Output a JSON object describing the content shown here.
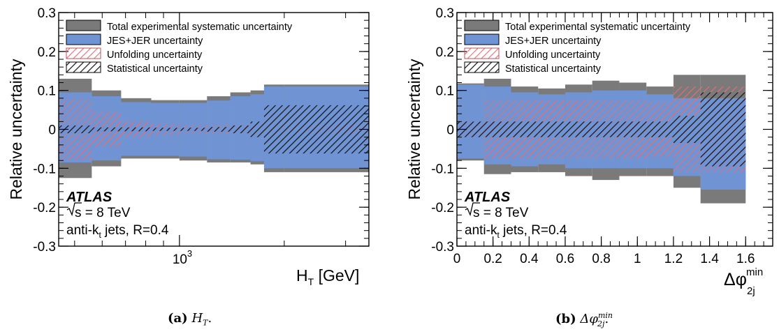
{
  "chart_data": [
    {
      "type": "area",
      "panel": "a",
      "xlabel": "H_T [GeV]",
      "xlabel_main": "H",
      "xlabel_sub": "T",
      "xlabel_unit": " [GeV]",
      "ylabel": "Relative uncertainty",
      "xscale": "log",
      "xlim": [
        450,
        3500
      ],
      "ylim": [
        -0.3,
        0.3
      ],
      "yticks": [
        "0.3",
        "0.2",
        "0.1",
        "0",
        "-0.1",
        "-0.2",
        "-0.3"
      ],
      "ytick_values": [
        0.3,
        0.2,
        0.1,
        0,
        -0.1,
        -0.2,
        -0.3
      ],
      "xtick_label_base": "10",
      "xtick_label_exp": "3",
      "xtick_value": 1000,
      "bin_edges": [
        450,
        560,
        680,
        830,
        1000,
        1200,
        1400,
        1600,
        1750,
        2000,
        3500
      ],
      "series": [
        {
          "name": "Total experimental systematic uncertainty",
          "style": "solid",
          "color": "#7a7a7a",
          "up": [
            0.13,
            0.1,
            0.08,
            0.075,
            0.075,
            0.085,
            0.095,
            0.1,
            0.115,
            0.115
          ],
          "down": [
            -0.125,
            -0.095,
            -0.075,
            -0.075,
            -0.08,
            -0.085,
            -0.085,
            -0.09,
            -0.11,
            -0.11
          ]
        },
        {
          "name": "JES+JER uncertainty",
          "style": "solid",
          "color": "#6f93d3",
          "up": [
            0.095,
            0.085,
            0.07,
            0.068,
            0.068,
            0.074,
            0.085,
            0.09,
            0.11,
            0.11
          ],
          "down": [
            -0.085,
            -0.08,
            -0.068,
            -0.068,
            -0.07,
            -0.077,
            -0.078,
            -0.082,
            -0.1,
            -0.1
          ]
        },
        {
          "name": "Unfolding uncertainty",
          "style": "hatch-red",
          "color": "#e0787a",
          "up": [
            0.078,
            0.045,
            0.02,
            0.015,
            0.012,
            0.012,
            0.01,
            0.012,
            0.012,
            0.012
          ],
          "down": [
            -0.078,
            -0.045,
            -0.02,
            -0.015,
            -0.012,
            -0.012,
            -0.01,
            -0.012,
            -0.012,
            -0.012
          ]
        },
        {
          "name": "Statistical uncertainty",
          "style": "hatch-black",
          "color": "#000000",
          "up": [
            0.01,
            0.005,
            0.005,
            0.004,
            0.004,
            0.006,
            0.01,
            0.02,
            0.062,
            0.062
          ],
          "down": [
            -0.01,
            -0.005,
            -0.005,
            -0.004,
            -0.004,
            -0.006,
            -0.01,
            -0.02,
            -0.062,
            -0.062
          ]
        }
      ],
      "atlas_label": "ATLAS",
      "energy_label": "s = 8 TeV",
      "jets_label": "anti-k",
      "jets_sub": "t",
      "jets_rest": " jets, R=0.4",
      "legend_position": "top-left",
      "grid": false
    },
    {
      "type": "area",
      "panel": "b",
      "xlabel": "Δφ_2j^min",
      "xlabel_main": "Δφ",
      "xlabel_sup": "min",
      "xlabel_sub": "2j",
      "ylabel": "Relative uncertainty",
      "xscale": "linear",
      "xlim": [
        0,
        1.75
      ],
      "ylim": [
        -0.3,
        0.3
      ],
      "yticks": [
        "0.3",
        "0.2",
        "0.1",
        "0",
        "-0.1",
        "-0.2",
        "-0.3"
      ],
      "ytick_values": [
        0.3,
        0.2,
        0.1,
        0,
        -0.1,
        -0.2,
        -0.3
      ],
      "xticks": [
        "0",
        "0.2",
        "0.4",
        "0.6",
        "0.8",
        "1",
        "1.2",
        "1.4",
        "1.6"
      ],
      "xtick_values": [
        0,
        0.2,
        0.4,
        0.6,
        0.8,
        1.0,
        1.2,
        1.4,
        1.6
      ],
      "bin_edges": [
        0,
        0.15,
        0.3,
        0.45,
        0.6,
        0.75,
        0.9,
        1.05,
        1.2,
        1.35,
        1.6
      ],
      "series": [
        {
          "name": "Total experimental systematic uncertainty",
          "style": "solid",
          "color": "#7a7a7a",
          "up": [
            0.118,
            0.13,
            0.11,
            0.105,
            0.115,
            0.125,
            0.12,
            0.11,
            0.14,
            0.14
          ],
          "down": [
            -0.08,
            -0.115,
            -0.11,
            -0.11,
            -0.12,
            -0.13,
            -0.12,
            -0.12,
            -0.15,
            -0.19
          ]
        },
        {
          "name": "JES+JER uncertainty",
          "style": "solid",
          "color": "#6f93d3",
          "up": [
            0.115,
            0.11,
            0.095,
            0.09,
            0.095,
            0.1,
            0.1,
            0.09,
            0.08,
            0.08
          ],
          "down": [
            -0.075,
            -0.09,
            -0.095,
            -0.09,
            -0.1,
            -0.1,
            -0.1,
            -0.1,
            -0.12,
            -0.155
          ]
        },
        {
          "name": "Unfolding uncertainty",
          "style": "hatch-red",
          "color": "#e0787a",
          "up": [
            0.02,
            0.075,
            0.075,
            0.075,
            0.075,
            0.075,
            0.075,
            0.07,
            0.11,
            0.11
          ],
          "down": [
            -0.02,
            -0.075,
            -0.075,
            -0.075,
            -0.075,
            -0.075,
            -0.075,
            -0.07,
            -0.11,
            -0.11
          ]
        },
        {
          "name": "Statistical uncertainty",
          "style": "hatch-black",
          "color": "#000000",
          "up": [
            0.02,
            0.02,
            0.02,
            0.02,
            0.02,
            0.02,
            0.02,
            0.02,
            0.035,
            0.095
          ],
          "down": [
            -0.02,
            -0.02,
            -0.02,
            -0.02,
            -0.02,
            -0.02,
            -0.02,
            -0.02,
            -0.035,
            -0.095
          ]
        }
      ],
      "atlas_label": "ATLAS",
      "energy_label": "s = 8 TeV",
      "jets_label": "anti-k",
      "jets_sub": "t",
      "jets_rest": " jets, R=0.4",
      "legend_position": "top-left",
      "grid": false
    }
  ],
  "captions": [
    {
      "label": "(a)",
      "text_main": "H",
      "text_sub": "T",
      "text_end": "."
    },
    {
      "label": "(b)",
      "text_main": "Δφ",
      "text_sup": "min",
      "text_sub": "2j",
      "text_end": "."
    }
  ]
}
